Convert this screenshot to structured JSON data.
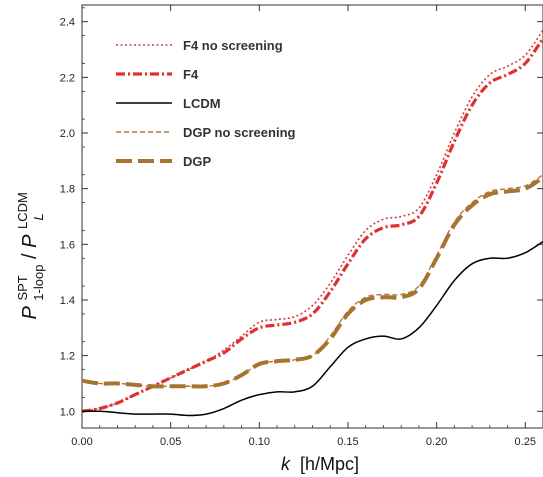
{
  "chart_data": {
    "type": "line",
    "xlabel_main": "k",
    "xlabel_unit": "[h/Mpc]",
    "ylabel": {
      "p1": "P",
      "p1_sup": "SPT",
      "p1_sub": "1-loop",
      "slash": "/",
      "p2": "P",
      "p2_sup": "LCDM",
      "p2_sub": "L"
    },
    "xlim": [
      0.0,
      0.26
    ],
    "ylim": [
      0.94,
      2.46
    ],
    "xticks": [
      "0.00",
      "0.05",
      "0.10",
      "0.15",
      "0.20",
      "0.25"
    ],
    "yticks": [
      "1.0",
      "1.2",
      "1.4",
      "1.6",
      "1.8",
      "2.0",
      "2.2",
      "2.4"
    ],
    "grid": false,
    "legend_position": "top-left",
    "x": [
      0.0,
      0.01,
      0.02,
      0.03,
      0.04,
      0.05,
      0.06,
      0.07,
      0.08,
      0.09,
      0.1,
      0.11,
      0.12,
      0.13,
      0.14,
      0.15,
      0.16,
      0.17,
      0.18,
      0.19,
      0.2,
      0.21,
      0.22,
      0.23,
      0.24,
      0.25,
      0.26
    ],
    "series": [
      {
        "name": "F4 no screening",
        "color": "#d63a3a",
        "style": "dotted",
        "values": [
          1.0,
          1.01,
          1.03,
          1.06,
          1.09,
          1.12,
          1.15,
          1.18,
          1.22,
          1.27,
          1.32,
          1.33,
          1.34,
          1.38,
          1.46,
          1.56,
          1.65,
          1.69,
          1.7,
          1.73,
          1.85,
          2.0,
          2.13,
          2.21,
          2.24,
          2.28,
          2.37
        ]
      },
      {
        "name": "F4",
        "color": "#e0302e",
        "style": "dashdot",
        "values": [
          1.0,
          1.01,
          1.03,
          1.06,
          1.09,
          1.12,
          1.15,
          1.18,
          1.21,
          1.26,
          1.3,
          1.31,
          1.32,
          1.35,
          1.43,
          1.53,
          1.62,
          1.66,
          1.67,
          1.7,
          1.82,
          1.97,
          2.1,
          2.18,
          2.21,
          2.25,
          2.34
        ]
      },
      {
        "name": "LCDM",
        "color": "#000000",
        "style": "solid",
        "values": [
          1.0,
          1.0,
          0.995,
          0.99,
          0.99,
          0.99,
          0.985,
          0.99,
          1.01,
          1.04,
          1.06,
          1.07,
          1.07,
          1.09,
          1.16,
          1.23,
          1.26,
          1.27,
          1.26,
          1.3,
          1.38,
          1.47,
          1.53,
          1.55,
          1.55,
          1.57,
          1.61
        ]
      },
      {
        "name": "DGP no screening",
        "color": "#b07a40",
        "style": "dashed",
        "values": [
          1.11,
          1.1,
          1.1,
          1.095,
          1.09,
          1.09,
          1.09,
          1.09,
          1.1,
          1.13,
          1.17,
          1.18,
          1.185,
          1.2,
          1.27,
          1.36,
          1.41,
          1.42,
          1.42,
          1.45,
          1.56,
          1.68,
          1.75,
          1.79,
          1.8,
          1.81,
          1.85
        ]
      },
      {
        "name": "DGP",
        "color": "#a8732e",
        "style": "longdash",
        "values": [
          1.11,
          1.1,
          1.1,
          1.095,
          1.09,
          1.09,
          1.09,
          1.09,
          1.1,
          1.13,
          1.17,
          1.18,
          1.185,
          1.2,
          1.26,
          1.35,
          1.4,
          1.41,
          1.41,
          1.44,
          1.55,
          1.67,
          1.74,
          1.78,
          1.79,
          1.8,
          1.84
        ]
      }
    ]
  }
}
